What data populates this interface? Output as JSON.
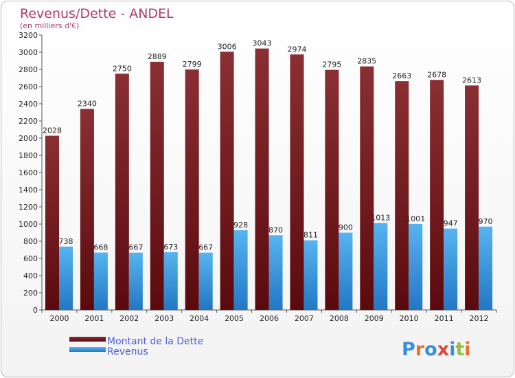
{
  "chart_data": {
    "type": "bar",
    "title": "Revenus/Dette - ANDEL",
    "subtitle": "(en milliers d'€)",
    "categories": [
      "2000",
      "2001",
      "2002",
      "2003",
      "2004",
      "2005",
      "2006",
      "2007",
      "2008",
      "2009",
      "2010",
      "2011",
      "2012"
    ],
    "series": [
      {
        "name": "Montant de la Dette",
        "color": "#7a1f26",
        "values": [
          2028,
          2340,
          2750,
          2889,
          2799,
          3006,
          3043,
          2974,
          2795,
          2835,
          2663,
          2678,
          2613
        ]
      },
      {
        "name": "Revenus",
        "color": "#3d9be0",
        "values": [
          738,
          668,
          667,
          673,
          667,
          928,
          870,
          811,
          900,
          1013,
          1001,
          947,
          970
        ]
      }
    ],
    "ylim": [
      0,
      3200
    ],
    "ytick_step": 200,
    "grid": false,
    "legend_position": "bottom-left"
  },
  "logo": {
    "letters": [
      "P",
      "r",
      "o",
      "x",
      "i",
      "t",
      "i"
    ],
    "colors": [
      "#3a8fd8",
      "#e8742a",
      "#3a8fd8",
      "#e0443c",
      "#3a8fd8",
      "#8fc13c",
      "#e8742a"
    ]
  }
}
